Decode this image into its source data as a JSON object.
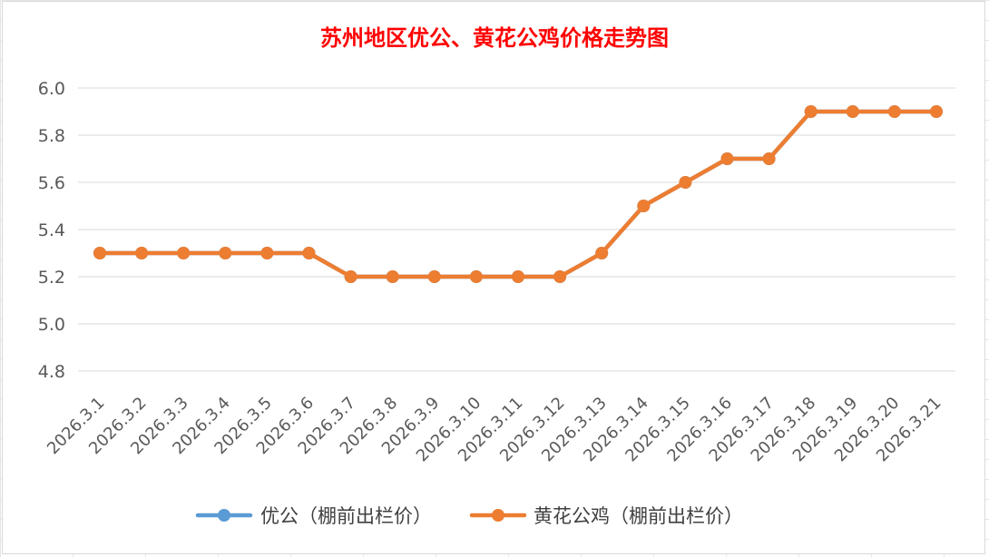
{
  "chart_data": {
    "type": "line",
    "title": "苏州地区优公、黄花公鸡价格走势图",
    "xlabel": "",
    "ylabel": "",
    "categories": [
      "2026.3.1",
      "2026.3.2",
      "2026.3.3",
      "2026.3.4",
      "2026.3.5",
      "2026.3.6",
      "2026.3.7",
      "2026.3.8",
      "2026.3.9",
      "2026.3.10",
      "2026.3.11",
      "2026.3.12",
      "2026.3.13",
      "2026.3.14",
      "2026.3.15",
      "2026.3.16",
      "2026.3.17",
      "2026.3.18",
      "2026.3.19",
      "2026.3.20",
      "2026.3.21"
    ],
    "ylim": [
      4.8,
      6.0
    ],
    "yticks": [
      "6.0",
      "5.8",
      "5.6",
      "5.4",
      "5.2",
      "5.0",
      "4.8"
    ],
    "grid": true,
    "legend_position": "bottom",
    "series": [
      {
        "name": "优公（棚前出栏价）",
        "color": "#5b9bd5",
        "values": [
          5.3,
          5.3,
          5.3,
          5.3,
          5.3,
          5.3,
          5.2,
          5.2,
          5.2,
          5.2,
          5.2,
          5.2,
          5.3,
          5.5,
          5.6,
          5.7,
          5.7,
          5.9,
          5.9,
          5.9,
          5.9
        ]
      },
      {
        "name": "黄花公鸡（棚前出栏价）",
        "color": "#ed7d31",
        "values": [
          5.3,
          5.3,
          5.3,
          5.3,
          5.3,
          5.3,
          5.2,
          5.2,
          5.2,
          5.2,
          5.2,
          5.2,
          5.3,
          5.5,
          5.6,
          5.7,
          5.7,
          5.9,
          5.9,
          5.9,
          5.9
        ]
      }
    ]
  }
}
